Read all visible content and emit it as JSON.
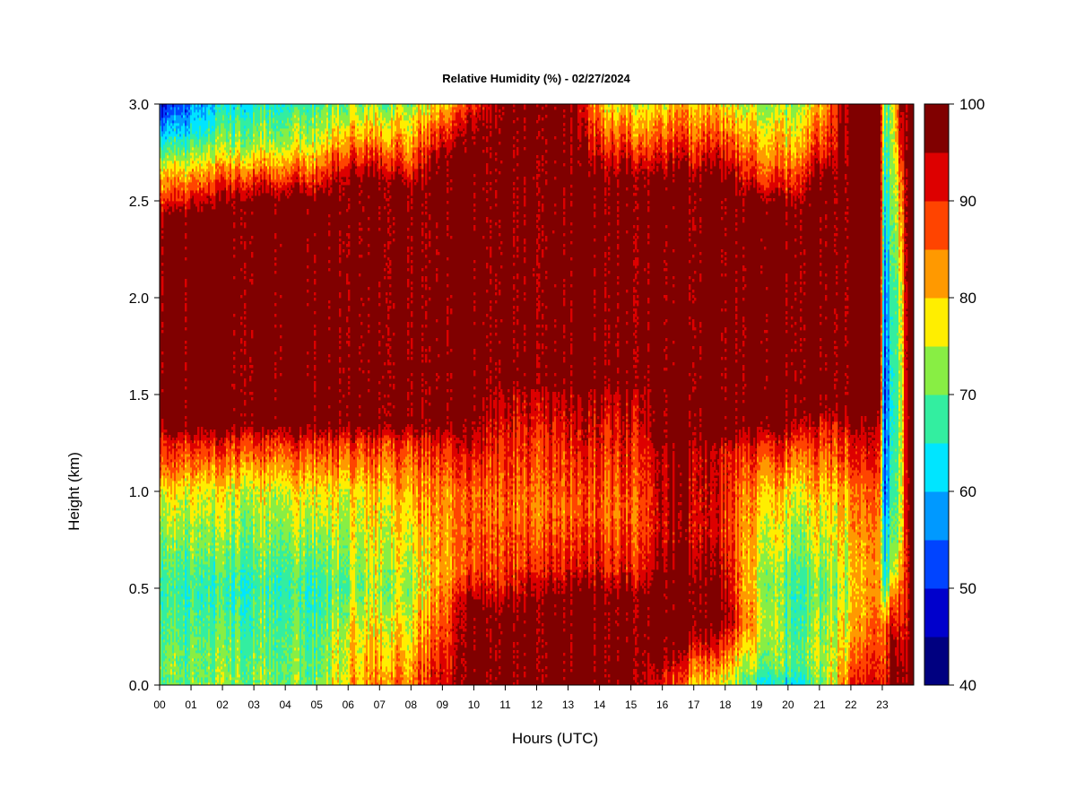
{
  "chart_data": {
    "type": "heatmap",
    "title": "Relative Humidity (%) - 02/27/2024",
    "xlabel": "Hours (UTC)",
    "ylabel": "Height (km)",
    "x_ticks": [
      "00",
      "01",
      "02",
      "03",
      "04",
      "05",
      "06",
      "07",
      "08",
      "09",
      "10",
      "11",
      "12",
      "13",
      "14",
      "15",
      "16",
      "17",
      "18",
      "19",
      "20",
      "21",
      "22",
      "23"
    ],
    "y_ticks": [
      "0.0",
      "0.5",
      "1.0",
      "1.5",
      "2.0",
      "2.5",
      "3.0"
    ],
    "xlim": [
      0,
      24
    ],
    "ylim": [
      0,
      3.0
    ],
    "colorbar": {
      "range": [
        40,
        100
      ],
      "step": 5,
      "tick_labels": [
        "40",
        "50",
        "60",
        "70",
        "80",
        "90",
        "100"
      ],
      "colors": [
        "#000080",
        "#0000cc",
        "#0044ff",
        "#0099ff",
        "#00e5ff",
        "#33eea0",
        "#88ee44",
        "#ffee00",
        "#ff9900",
        "#ff4400",
        "#dd0000",
        "#800000"
      ]
    },
    "profiles": [
      {
        "hour": 0,
        "levels": [
          [
            0.0,
            70
          ],
          [
            0.1,
            72
          ],
          [
            0.5,
            68
          ],
          [
            1.0,
            78
          ],
          [
            1.1,
            86
          ],
          [
            1.25,
            92
          ],
          [
            1.35,
            100
          ],
          [
            2.4,
            100
          ],
          [
            2.5,
            90
          ],
          [
            2.65,
            80
          ],
          [
            2.8,
            66
          ],
          [
            2.95,
            52
          ],
          [
            3.0,
            48
          ]
        ]
      },
      {
        "hour": 1,
        "levels": [
          [
            0.0,
            70
          ],
          [
            0.5,
            66
          ],
          [
            1.0,
            76
          ],
          [
            1.25,
            90
          ],
          [
            1.35,
            100
          ],
          [
            2.4,
            100
          ],
          [
            2.55,
            88
          ],
          [
            2.7,
            75
          ],
          [
            2.85,
            62
          ],
          [
            3.0,
            55
          ]
        ]
      },
      {
        "hour": 2,
        "levels": [
          [
            0.0,
            72
          ],
          [
            0.5,
            66
          ],
          [
            1.0,
            76
          ],
          [
            1.25,
            90
          ],
          [
            1.35,
            100
          ],
          [
            2.45,
            100
          ],
          [
            2.6,
            88
          ],
          [
            2.75,
            74
          ],
          [
            3.0,
            62
          ]
        ]
      },
      {
        "hour": 3,
        "levels": [
          [
            0.0,
            72
          ],
          [
            0.5,
            68
          ],
          [
            1.0,
            76
          ],
          [
            1.25,
            90
          ],
          [
            1.35,
            100
          ],
          [
            2.5,
            100
          ],
          [
            2.65,
            86
          ],
          [
            2.8,
            74
          ],
          [
            3.0,
            66
          ]
        ]
      },
      {
        "hour": 4,
        "levels": [
          [
            0.0,
            72
          ],
          [
            0.5,
            68
          ],
          [
            1.0,
            76
          ],
          [
            1.25,
            90
          ],
          [
            1.35,
            100
          ],
          [
            2.5,
            100
          ],
          [
            2.65,
            86
          ],
          [
            2.8,
            74
          ],
          [
            3.0,
            66
          ]
        ]
      },
      {
        "hour": 5,
        "levels": [
          [
            0.0,
            70
          ],
          [
            0.5,
            66
          ],
          [
            1.0,
            78
          ],
          [
            1.25,
            90
          ],
          [
            1.35,
            100
          ],
          [
            2.5,
            100
          ],
          [
            2.65,
            86
          ],
          [
            2.8,
            76
          ],
          [
            3.0,
            68
          ]
        ]
      },
      {
        "hour": 6,
        "levels": [
          [
            0.0,
            80
          ],
          [
            0.25,
            78
          ],
          [
            0.5,
            72
          ],
          [
            1.0,
            78
          ],
          [
            1.25,
            90
          ],
          [
            1.35,
            100
          ],
          [
            2.6,
            100
          ],
          [
            2.75,
            88
          ],
          [
            3.0,
            72
          ]
        ]
      },
      {
        "hour": 7,
        "levels": [
          [
            0.0,
            84
          ],
          [
            0.2,
            80
          ],
          [
            0.5,
            74
          ],
          [
            1.0,
            80
          ],
          [
            1.25,
            90
          ],
          [
            1.35,
            100
          ],
          [
            2.6,
            100
          ],
          [
            2.75,
            88
          ],
          [
            3.0,
            72
          ]
        ]
      },
      {
        "hour": 8,
        "levels": [
          [
            0.0,
            86
          ],
          [
            0.2,
            80
          ],
          [
            0.5,
            74
          ],
          [
            1.0,
            82
          ],
          [
            1.25,
            90
          ],
          [
            1.35,
            100
          ],
          [
            2.55,
            100
          ],
          [
            2.7,
            88
          ],
          [
            3.0,
            74
          ]
        ]
      },
      {
        "hour": 9,
        "levels": [
          [
            0.0,
            94
          ],
          [
            0.1,
            92
          ],
          [
            0.3,
            88
          ],
          [
            0.6,
            82
          ],
          [
            1.0,
            84
          ],
          [
            1.25,
            92
          ],
          [
            1.35,
            100
          ],
          [
            2.7,
            100
          ],
          [
            2.85,
            90
          ],
          [
            3.0,
            80
          ]
        ]
      },
      {
        "hour": 10,
        "levels": [
          [
            0.0,
            100
          ],
          [
            0.4,
            100
          ],
          [
            0.6,
            88
          ],
          [
            1.0,
            86
          ],
          [
            1.3,
            96
          ],
          [
            1.4,
            100
          ],
          [
            2.8,
            100
          ],
          [
            2.95,
            94
          ],
          [
            3.0,
            90
          ]
        ]
      },
      {
        "hour": 11,
        "levels": [
          [
            0.0,
            100
          ],
          [
            0.35,
            100
          ],
          [
            0.55,
            90
          ],
          [
            0.9,
            86
          ],
          [
            1.2,
            90
          ],
          [
            1.5,
            96
          ],
          [
            1.55,
            100
          ],
          [
            3.0,
            100
          ]
        ]
      },
      {
        "hour": 12,
        "levels": [
          [
            0.0,
            100
          ],
          [
            0.45,
            100
          ],
          [
            0.6,
            92
          ],
          [
            0.9,
            86
          ],
          [
            1.2,
            90
          ],
          [
            1.5,
            96
          ],
          [
            1.55,
            100
          ],
          [
            3.0,
            100
          ]
        ]
      },
      {
        "hour": 13,
        "levels": [
          [
            0.0,
            100
          ],
          [
            0.45,
            100
          ],
          [
            0.6,
            92
          ],
          [
            0.9,
            86
          ],
          [
            1.2,
            90
          ],
          [
            1.5,
            96
          ],
          [
            1.55,
            100
          ],
          [
            3.0,
            100
          ]
        ]
      },
      {
        "hour": 14,
        "levels": [
          [
            0.0,
            100
          ],
          [
            0.45,
            100
          ],
          [
            0.6,
            92
          ],
          [
            0.9,
            86
          ],
          [
            1.2,
            90
          ],
          [
            1.5,
            96
          ],
          [
            1.55,
            100
          ],
          [
            2.6,
            100
          ],
          [
            2.8,
            90
          ],
          [
            3.0,
            80
          ]
        ]
      },
      {
        "hour": 15,
        "levels": [
          [
            0.0,
            100
          ],
          [
            0.45,
            100
          ],
          [
            0.6,
            90
          ],
          [
            0.9,
            86
          ],
          [
            1.2,
            90
          ],
          [
            1.5,
            96
          ],
          [
            1.55,
            100
          ],
          [
            2.6,
            100
          ],
          [
            2.8,
            88
          ],
          [
            3.0,
            78
          ]
        ]
      },
      {
        "hour": 16,
        "levels": [
          [
            0.0,
            92
          ],
          [
            0.1,
            96
          ],
          [
            0.2,
            100
          ],
          [
            0.5,
            100
          ],
          [
            0.8,
            94
          ],
          [
            1.2,
            96
          ],
          [
            1.3,
            100
          ],
          [
            2.6,
            100
          ],
          [
            2.8,
            88
          ],
          [
            3.0,
            78
          ]
        ]
      },
      {
        "hour": 17,
        "levels": [
          [
            0.0,
            80
          ],
          [
            0.1,
            86
          ],
          [
            0.2,
            94
          ],
          [
            0.3,
            100
          ],
          [
            0.5,
            100
          ],
          [
            0.8,
            94
          ],
          [
            1.2,
            96
          ],
          [
            1.3,
            100
          ],
          [
            2.6,
            100
          ],
          [
            2.8,
            88
          ],
          [
            3.0,
            80
          ]
        ]
      },
      {
        "hour": 18,
        "levels": [
          [
            0.0,
            76
          ],
          [
            0.1,
            82
          ],
          [
            0.25,
            92
          ],
          [
            0.35,
            98
          ],
          [
            0.5,
            96
          ],
          [
            0.8,
            90
          ],
          [
            1.2,
            92
          ],
          [
            1.3,
            100
          ],
          [
            2.6,
            100
          ],
          [
            2.8,
            88
          ],
          [
            3.0,
            78
          ]
        ]
      },
      {
        "hour": 19,
        "levels": [
          [
            0.0,
            66
          ],
          [
            0.1,
            72
          ],
          [
            0.3,
            80
          ],
          [
            0.5,
            76
          ],
          [
            1.0,
            82
          ],
          [
            1.25,
            92
          ],
          [
            1.35,
            100
          ],
          [
            2.5,
            100
          ],
          [
            2.65,
            88
          ],
          [
            3.0,
            74
          ]
        ]
      },
      {
        "hour": 20,
        "levels": [
          [
            0.0,
            62
          ],
          [
            0.1,
            70
          ],
          [
            0.5,
            68
          ],
          [
            1.0,
            78
          ],
          [
            1.25,
            90
          ],
          [
            1.35,
            100
          ],
          [
            2.45,
            100
          ],
          [
            2.6,
            88
          ],
          [
            3.0,
            72
          ]
        ]
      },
      {
        "hour": 21,
        "levels": [
          [
            0.0,
            70
          ],
          [
            0.2,
            74
          ],
          [
            0.5,
            70
          ],
          [
            1.0,
            80
          ],
          [
            1.3,
            90
          ],
          [
            1.45,
            100
          ],
          [
            2.6,
            100
          ],
          [
            2.75,
            90
          ],
          [
            3.0,
            80
          ]
        ]
      },
      {
        "hour": 22,
        "levels": [
          [
            0.0,
            88
          ],
          [
            0.2,
            80
          ],
          [
            0.5,
            76
          ],
          [
            1.0,
            82
          ],
          [
            1.3,
            92
          ],
          [
            1.45,
            100
          ],
          [
            3.0,
            100
          ]
        ]
      },
      {
        "hour": 22.95,
        "levels": [
          [
            0.0,
            92
          ],
          [
            0.3,
            86
          ],
          [
            0.6,
            82
          ],
          [
            1.0,
            86
          ],
          [
            1.4,
            96
          ],
          [
            1.5,
            100
          ],
          [
            3.0,
            100
          ]
        ]
      },
      {
        "hour": 23.05,
        "levels": [
          [
            0.0,
            90
          ],
          [
            0.3,
            84
          ],
          [
            0.5,
            66
          ],
          [
            1.0,
            52
          ],
          [
            1.5,
            50
          ],
          [
            2.0,
            54
          ],
          [
            2.5,
            62
          ],
          [
            3.0,
            70
          ]
        ]
      },
      {
        "hour": 23.3,
        "levels": [
          [
            0.0,
            100
          ],
          [
            0.25,
            96
          ],
          [
            0.45,
            86
          ],
          [
            0.6,
            72
          ],
          [
            1.0,
            66
          ],
          [
            1.5,
            64
          ],
          [
            2.0,
            66
          ],
          [
            2.5,
            70
          ],
          [
            3.0,
            72
          ]
        ]
      },
      {
        "hour": 23.6,
        "levels": [
          [
            0.0,
            100
          ],
          [
            0.3,
            92
          ],
          [
            0.5,
            86
          ],
          [
            0.8,
            76
          ],
          [
            1.5,
            74
          ],
          [
            2.0,
            76
          ],
          [
            2.6,
            86
          ],
          [
            3.0,
            100
          ]
        ]
      },
      {
        "hour": 23.75,
        "levels": [
          [
            0.0,
            100
          ],
          [
            0.5,
            92
          ],
          [
            1.0,
            96
          ],
          [
            3.0,
            100
          ]
        ]
      },
      {
        "hour": 23.9,
        "levels": [
          [
            0.0,
            100
          ],
          [
            3.0,
            100
          ]
        ]
      }
    ]
  }
}
